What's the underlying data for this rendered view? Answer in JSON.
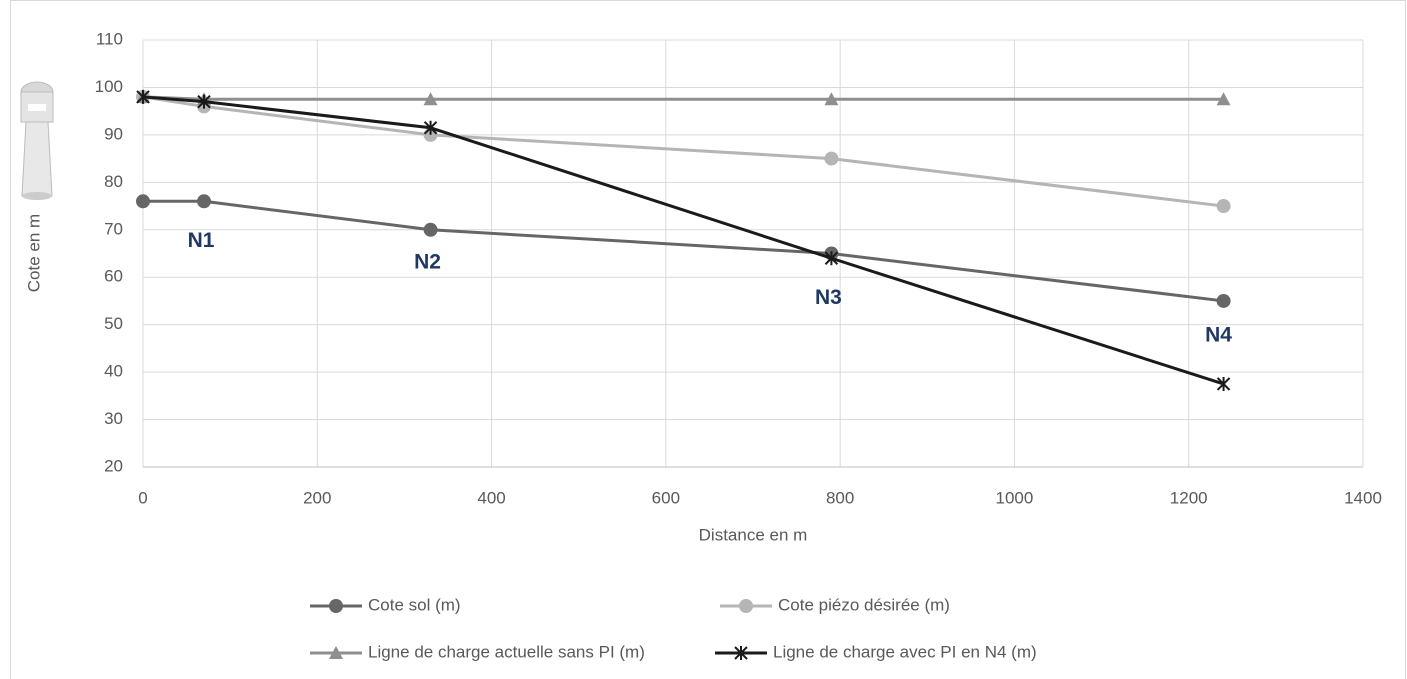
{
  "chart_data": {
    "type": "line",
    "x_label": "Distance en m",
    "y_label": "Cote en m",
    "x": [
      0,
      70,
      330,
      790,
      1240
    ],
    "series": [
      {
        "name": "Cote sol (m)",
        "color": "#666666",
        "marker": "circle",
        "values": [
          76,
          76,
          70,
          65,
          55
        ]
      },
      {
        "name": "Cote piézo désirée (m)",
        "color": "#b5b5b5",
        "marker": "circle",
        "values": [
          98,
          96,
          90,
          85,
          75
        ]
      },
      {
        "name": "Ligne de charge actuelle sans PI (m)",
        "color": "#8f8f8f",
        "marker": "triangle",
        "values": [
          98,
          97.5,
          97.5,
          97.5,
          97.5
        ]
      },
      {
        "name": "Ligne de charge avec PI en N4 (m)",
        "color": "#1a1a1a",
        "marker": "star",
        "values": [
          98,
          97,
          91.5,
          64,
          37.5
        ]
      }
    ],
    "annotations": [
      "N1",
      "N2",
      "N3",
      "N4"
    ],
    "xlim": [
      0,
      1400
    ],
    "xticks": [
      0,
      200,
      400,
      600,
      800,
      1000,
      1200,
      1400
    ],
    "ylim": [
      20,
      110
    ],
    "yticks": [
      20,
      30,
      40,
      50,
      60,
      70,
      80,
      90,
      100,
      110
    ],
    "grid": true,
    "legend": "bottom"
  }
}
